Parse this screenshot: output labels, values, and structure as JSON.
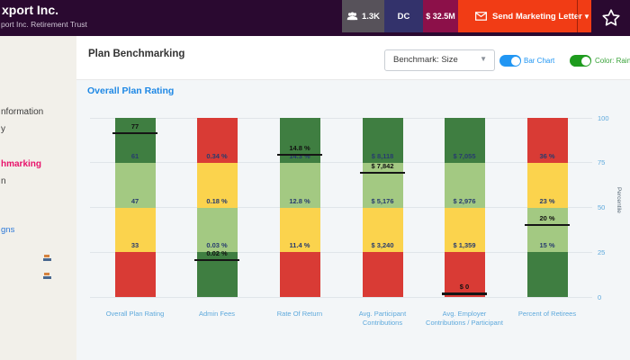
{
  "header": {
    "title": "xport Inc.",
    "subtitle": "port Inc. Retirement Trust",
    "badges": [
      {
        "label": "1.3K",
        "icon": "users-icon",
        "color": "#57525a"
      },
      {
        "label": "DC",
        "color": "#33326b"
      },
      {
        "label": "$ 32.5M",
        "color": "#8c1049"
      }
    ],
    "send_button": {
      "label": "Send Marketing Letter",
      "icon": "envelope-icon",
      "color": "#f13c15"
    },
    "favorite_icon": "star-outline"
  },
  "sidebar": {
    "items": [
      {
        "label": "nformation"
      },
      {
        "label": "y"
      },
      {
        "label": "hmarking",
        "active": true,
        "color": "#e8136b"
      },
      {
        "label": "n"
      },
      {
        "label": "gns",
        "color": "#2d79d8"
      }
    ]
  },
  "toolbar": {
    "title": "Plan Benchmarking",
    "benchmark_select": {
      "value": "Benchmark: Size"
    },
    "toggles": [
      {
        "label": "Bar Chart",
        "state": "on",
        "color": "#2196f3"
      },
      {
        "label": "Color: Rainbow",
        "state": "on",
        "color": "#1e9b1e",
        "label_color": "#3aa33a"
      }
    ]
  },
  "section_title": "Overall Plan Rating",
  "chart_data": {
    "type": "bar",
    "subtype": "stacked-quartile-benchmark",
    "title": "Overall Plan Rating",
    "ylabel": "Percentile",
    "ylim": [
      0,
      100
    ],
    "yticks": [
      0,
      25,
      50,
      75,
      100
    ],
    "grid": true,
    "colors": {
      "red": "#d93b35",
      "yellow": "#fbd34d",
      "light_green": "#a3c982",
      "dark_green": "#3f7e41",
      "boundary_label": "#283c6e",
      "value_label": "#111111",
      "axis_text": "#5ea9dc"
    },
    "categories": [
      "Overall Plan Rating",
      "Admin Fees",
      "Rate Of Return",
      "Avg. Participant Contributions",
      "Avg. Employer Contributions / Participant",
      "Percent of Retirees"
    ],
    "bars": [
      {
        "category": "Overall Plan Rating",
        "orientation": "green-top",
        "quartile_boundaries": [
          {
            "percentile": 25,
            "label": "33"
          },
          {
            "percentile": 50,
            "label": "47"
          },
          {
            "percentile": 75,
            "label": "61"
          }
        ],
        "plan_value": {
          "label": "77",
          "percentile": 91.5
        }
      },
      {
        "category": "Admin Fees",
        "orientation": "red-top",
        "quartile_boundaries": [
          {
            "percentile": 25,
            "label": "0.03 %"
          },
          {
            "percentile": 50,
            "label": "0.18 %"
          },
          {
            "percentile": 75,
            "label": "0.34 %"
          }
        ],
        "plan_value": {
          "label": "0.02 %",
          "percentile": 20.5
        }
      },
      {
        "category": "Rate Of Return",
        "orientation": "green-top",
        "quartile_boundaries": [
          {
            "percentile": 25,
            "label": "11.4 %"
          },
          {
            "percentile": 50,
            "label": "12.8 %"
          },
          {
            "percentile": 75,
            "label": "14.3 %"
          }
        ],
        "plan_value": {
          "label": "14.8 %",
          "percentile": 79.3
        }
      },
      {
        "category": "Avg. Participant Contributions",
        "orientation": "green-top",
        "quartile_boundaries": [
          {
            "percentile": 25,
            "label": "$ 3,240"
          },
          {
            "percentile": 50,
            "label": "$ 5,176"
          },
          {
            "percentile": 75,
            "label": "$ 8,118"
          }
        ],
        "plan_value": {
          "label": "$ 7,842",
          "percentile": 69.3
        }
      },
      {
        "category": "Avg. Employer Contributions / Participant",
        "orientation": "green-top",
        "quartile_boundaries": [
          {
            "percentile": 25,
            "label": "$ 1,359"
          },
          {
            "percentile": 50,
            "label": "$ 2,976"
          },
          {
            "percentile": 75,
            "label": "$ 7,055"
          }
        ],
        "plan_value": {
          "label": "$ 0",
          "percentile": 1.8
        }
      },
      {
        "category": "Percent of Retirees",
        "orientation": "red-top",
        "quartile_boundaries": [
          {
            "percentile": 25,
            "label": "15 %"
          },
          {
            "percentile": 50,
            "label": "23 %"
          },
          {
            "percentile": 75,
            "label": "36 %"
          }
        ],
        "plan_value": {
          "label": "20 %",
          "percentile": 40.2
        }
      }
    ]
  }
}
